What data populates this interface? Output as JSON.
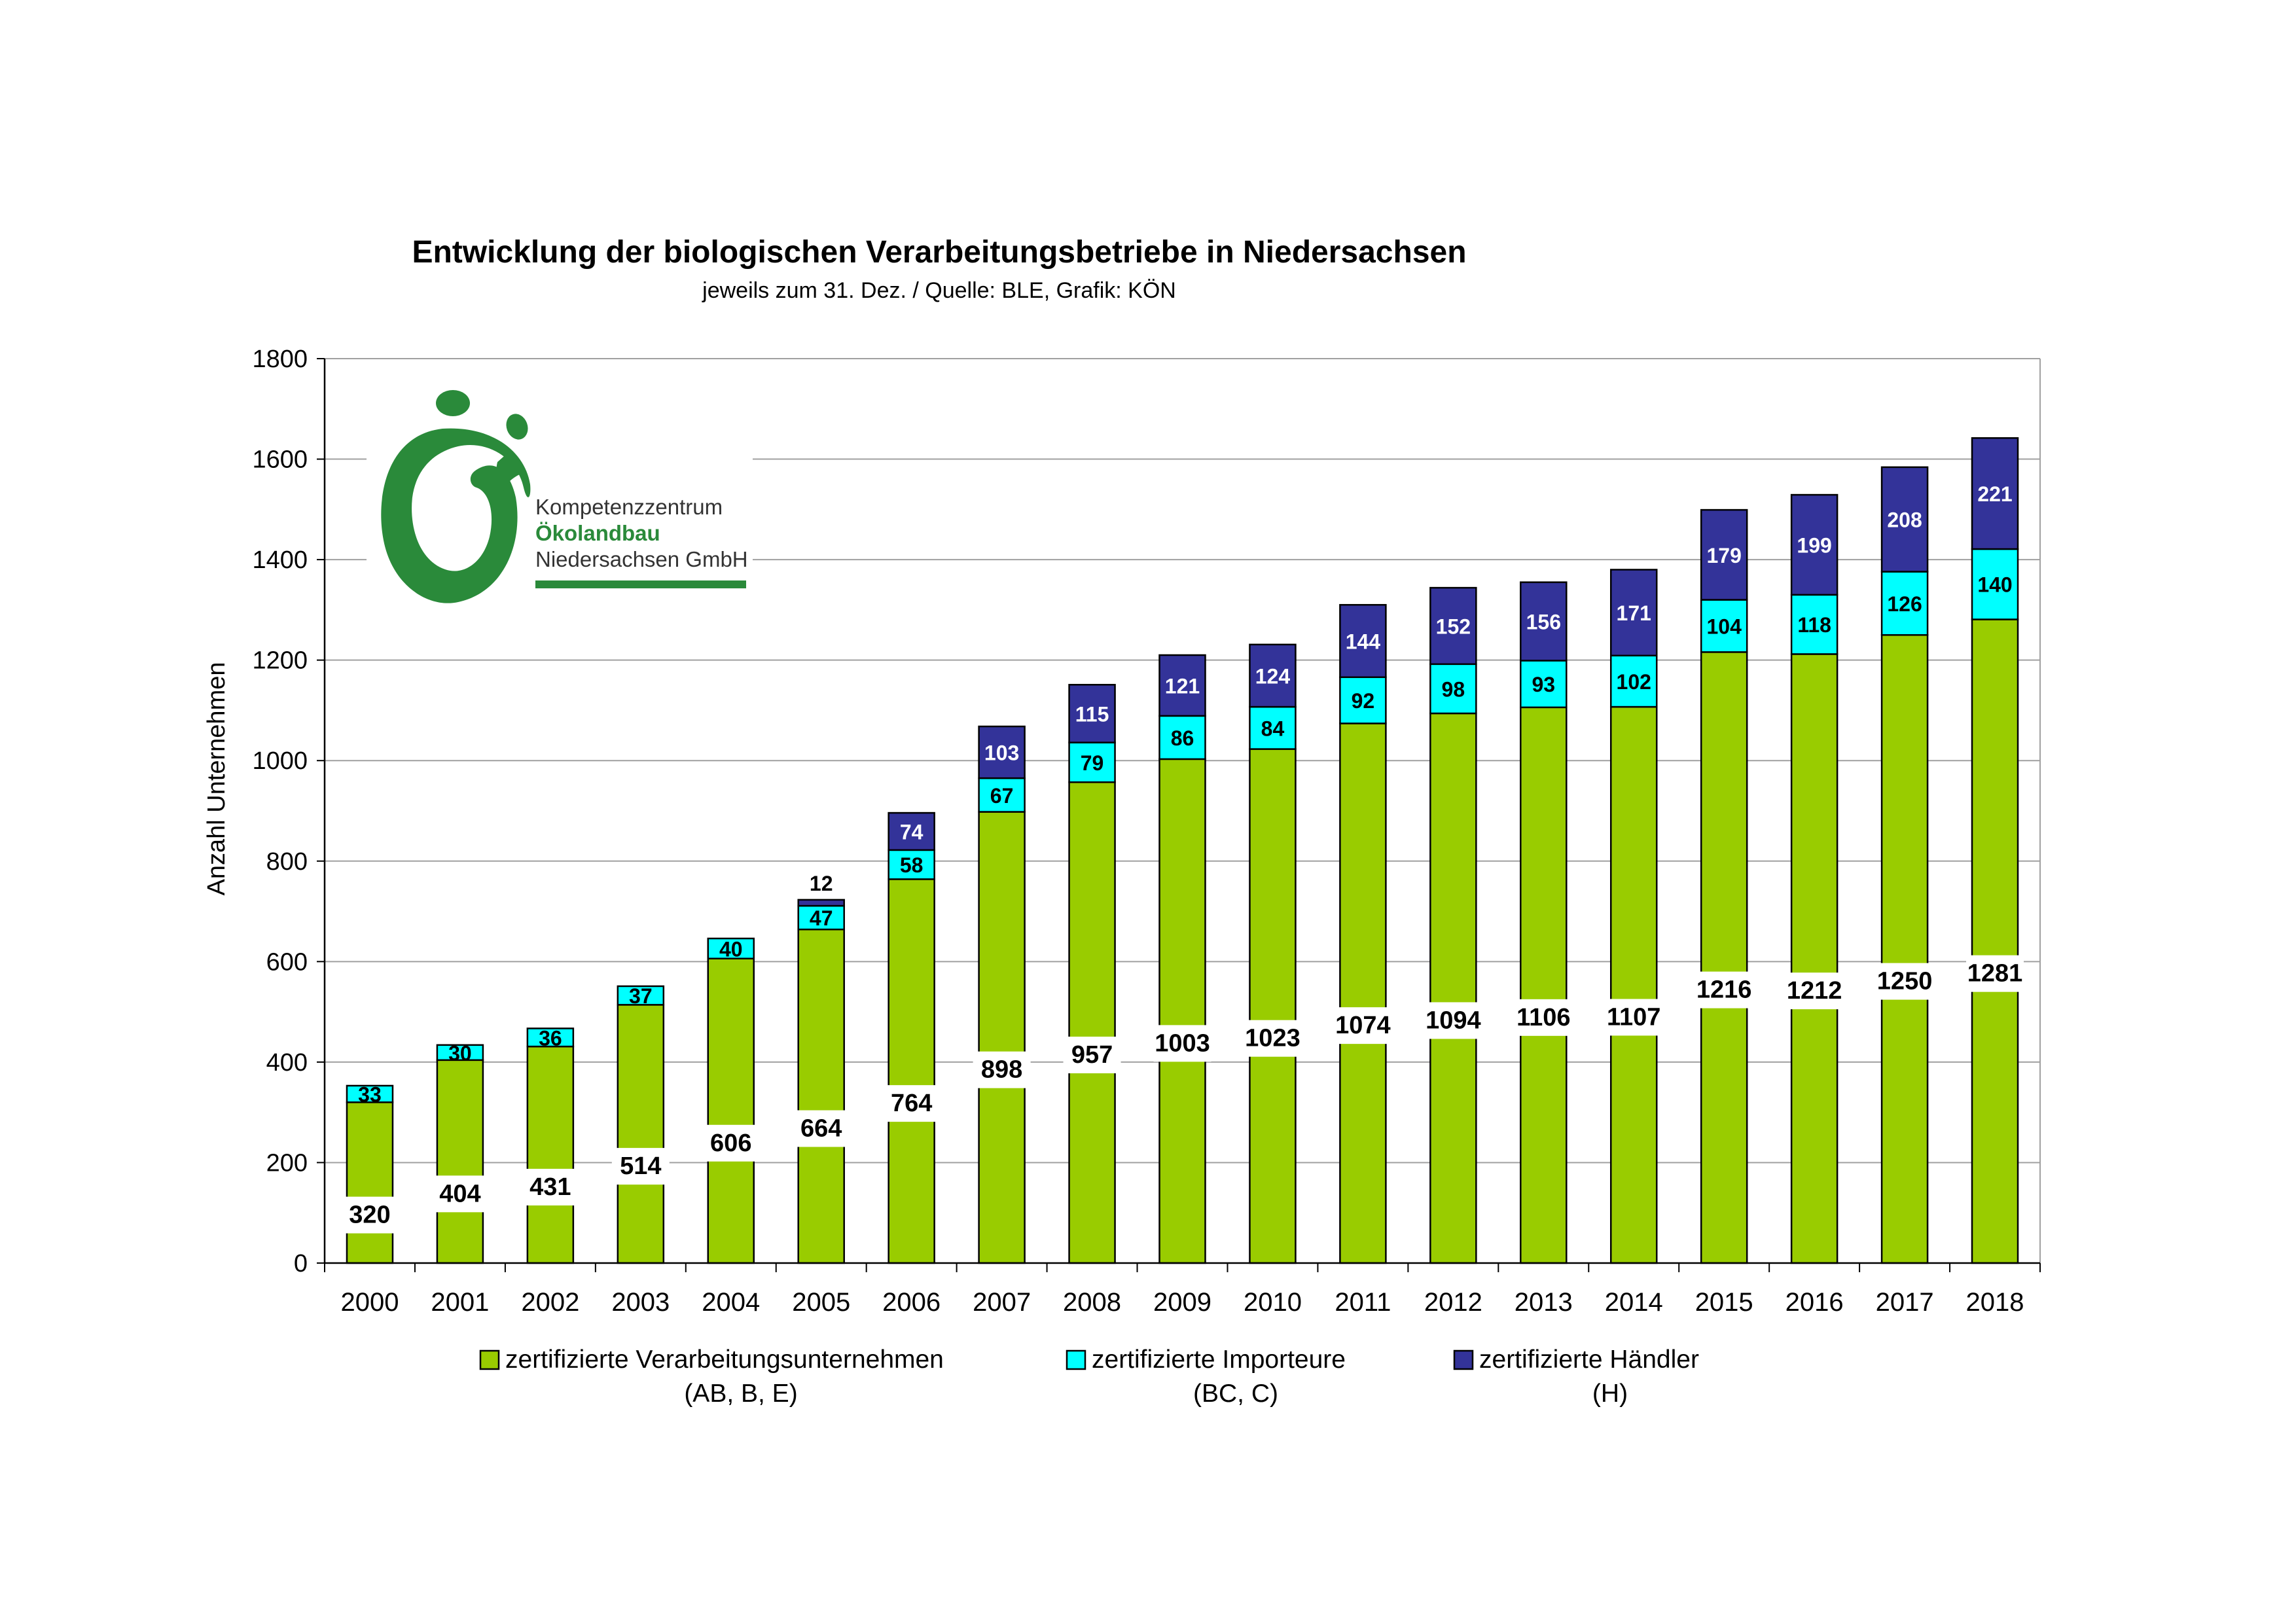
{
  "logo": {
    "line1": "Kompetenzzentrum",
    "line2": "Ökolandbau",
    "line3": "Niedersachsen GmbH",
    "color": "#2a8a3a"
  },
  "chart_data": {
    "type": "bar",
    "stacked": true,
    "title": "Entwicklung der biologischen Verarbeitungsbetriebe in Niedersachsen",
    "subtitle": "jeweils zum 31. Dez. / Quelle: BLE, Grafik: KÖN",
    "ylabel": "Anzahl Unternehmen",
    "xlabel": "",
    "ylim": [
      0,
      1800
    ],
    "yticks": [
      0,
      200,
      400,
      600,
      800,
      1000,
      1200,
      1400,
      1600,
      1800
    ],
    "grid": true,
    "legend_position": "bottom",
    "categories": [
      "2000",
      "2001",
      "2002",
      "2003",
      "2004",
      "2005",
      "2006",
      "2007",
      "2008",
      "2009",
      "2010",
      "2011",
      "2012",
      "2013",
      "2014",
      "2015",
      "2016",
      "2017",
      "2018"
    ],
    "series": [
      {
        "name": "zertifizierte Verarbeitungsunternehmen",
        "name_sub": "(AB, B, E)",
        "color": "#99cc00",
        "values": [
          320,
          404,
          431,
          514,
          606,
          664,
          764,
          898,
          957,
          1003,
          1023,
          1074,
          1094,
          1106,
          1107,
          1216,
          1212,
          1250,
          1281
        ]
      },
      {
        "name": "zertifizierte Importeure",
        "name_sub": "(BC, C)",
        "color": "#00ffff",
        "values": [
          33,
          30,
          36,
          37,
          40,
          47,
          58,
          67,
          79,
          86,
          84,
          92,
          98,
          93,
          102,
          104,
          118,
          126,
          140
        ]
      },
      {
        "name": "zertifizierte Händler",
        "name_sub": "(H)",
        "color": "#333399",
        "values": [
          0,
          0,
          0,
          0,
          0,
          12,
          74,
          103,
          115,
          121,
          124,
          144,
          152,
          156,
          171,
          179,
          199,
          208,
          221
        ]
      }
    ]
  }
}
